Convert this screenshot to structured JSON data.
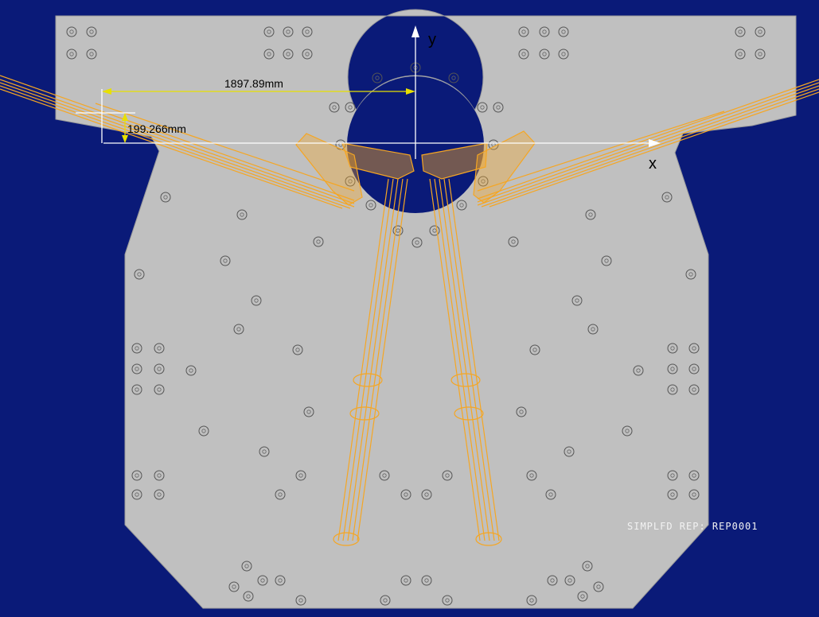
{
  "drawing": {
    "axes": {
      "x_label": "x",
      "y_label": "y"
    },
    "dimensions": {
      "horizontal": "1897.89mm",
      "vertical": "199.266mm"
    },
    "footer_label": "SIMPLFD REP: REP0001",
    "colors": {
      "background": "#0a1a78",
      "plate": "#c0c0c0",
      "pipe": "#f5a623",
      "dimension": "#e8e000",
      "axis": "#ffffff",
      "hole": "#555555"
    },
    "icons": [
      "bolt-hole-icon"
    ]
  }
}
